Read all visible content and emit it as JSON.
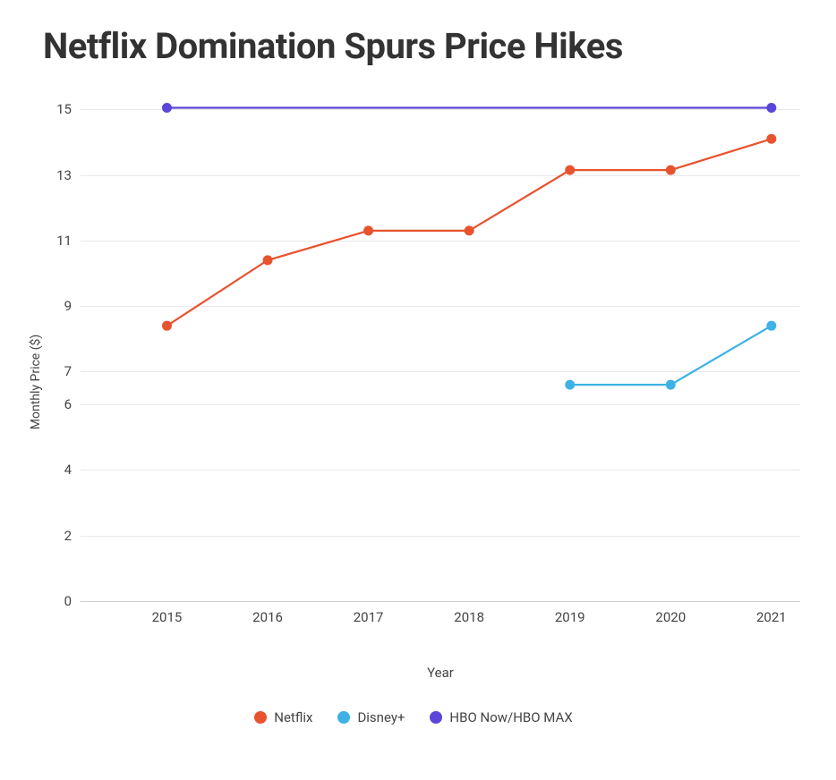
{
  "title": "Netflix Domination Spurs Price Hikes",
  "chart": {
    "type": "line",
    "xlabel": "Year",
    "ylabel": "Monthly Price ($)",
    "x_categories": [
      "2015",
      "2016",
      "2017",
      "2018",
      "2019",
      "2020",
      "2021"
    ],
    "ylim": [
      0,
      15.8
    ],
    "yticks": [
      0,
      2,
      4,
      6,
      7,
      9,
      11,
      13,
      15
    ],
    "grid_color": "#e8e8e8",
    "axis_color": "#d0d0d0",
    "background_color": "#ffffff",
    "tick_fontsize": 15,
    "tick_color": "#444444",
    "label_fontsize": 15,
    "title_fontsize": 40,
    "title_color": "#333333",
    "line_width": 2.2,
    "marker_radius": 5.5,
    "series": [
      {
        "name": "Netflix",
        "color": "#e8532f",
        "x": [
          0,
          1,
          2,
          3,
          4,
          5,
          6
        ],
        "y": [
          8.4,
          10.4,
          11.3,
          11.3,
          13.15,
          13.15,
          14.1
        ],
        "end_marker_highlight": false
      },
      {
        "name": "Disney+",
        "color": "#3eb2e6",
        "x": [
          4,
          5,
          6
        ],
        "y": [
          6.6,
          6.6,
          8.4
        ],
        "end_marker_highlight": false
      },
      {
        "name": "HBO Now/HBO MAX",
        "color": "#5b46d9",
        "x": [
          0,
          1,
          2,
          3,
          4,
          5,
          6
        ],
        "y": [
          15.05,
          15.05,
          15.05,
          15.05,
          15.05,
          15.05,
          15.05
        ],
        "end_marker_highlight": true
      }
    ]
  }
}
